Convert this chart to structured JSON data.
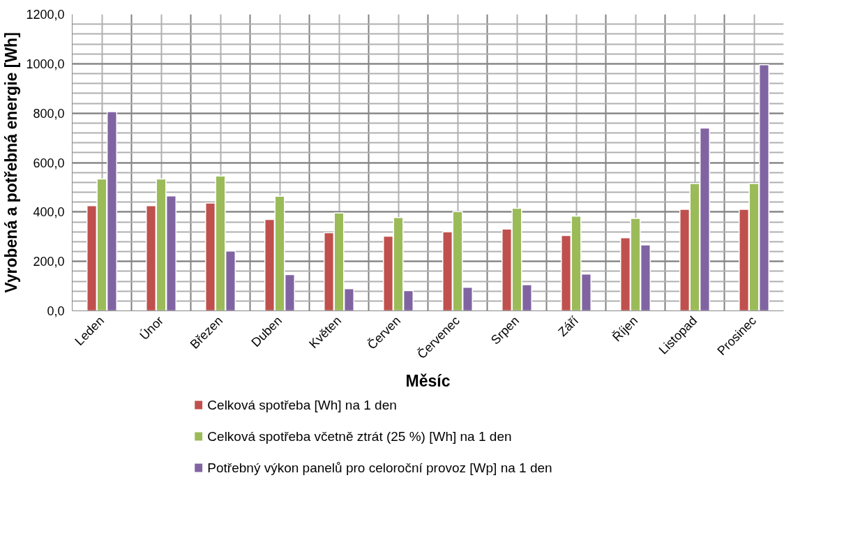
{
  "chart_data": {
    "type": "bar",
    "xlabel": "Měsíc",
    "ylabel": "Vyrobená a potřebná energie [Wh]",
    "categories": [
      "Leden",
      "Únor",
      "Březen",
      "Duben",
      "Květen",
      "Červen",
      "Červenec",
      "Srpen",
      "Září",
      "Říjen",
      "Listopad",
      "Prosinec"
    ],
    "series": [
      {
        "name": "Celková spotřeba [Wh] na 1 den",
        "color": "#c0504d",
        "values": [
          426,
          426,
          436,
          370,
          316,
          302,
          320,
          331,
          305,
          296,
          411,
          411
        ]
      },
      {
        "name": "Celková spotřeba včetně ztrát (25 %) [Wh] na 1 den",
        "color": "#9bbb59",
        "values": [
          534,
          534,
          546,
          464,
          396,
          378,
          402,
          415,
          383,
          374,
          515,
          515
        ]
      },
      {
        "name": "Potřebný výkon panelů pro celoroční provoz [Wp] na 1 den",
        "color": "#8064a2",
        "values": [
          806,
          465,
          242,
          147,
          90,
          82,
          95,
          106,
          149,
          267,
          740,
          996
        ]
      }
    ],
    "ylim": [
      0,
      1200
    ],
    "yticks": [
      {
        "value": 0,
        "label": "0,0"
      },
      {
        "value": 200,
        "label": "200,0"
      },
      {
        "value": 400,
        "label": "400,0"
      },
      {
        "value": 600,
        "label": "600,0"
      },
      {
        "value": 800,
        "label": "800,0"
      },
      {
        "value": 1000,
        "label": "1000,0"
      },
      {
        "value": 1200,
        "label": "1200,0"
      }
    ],
    "grid": true,
    "legend": "bottom"
  }
}
